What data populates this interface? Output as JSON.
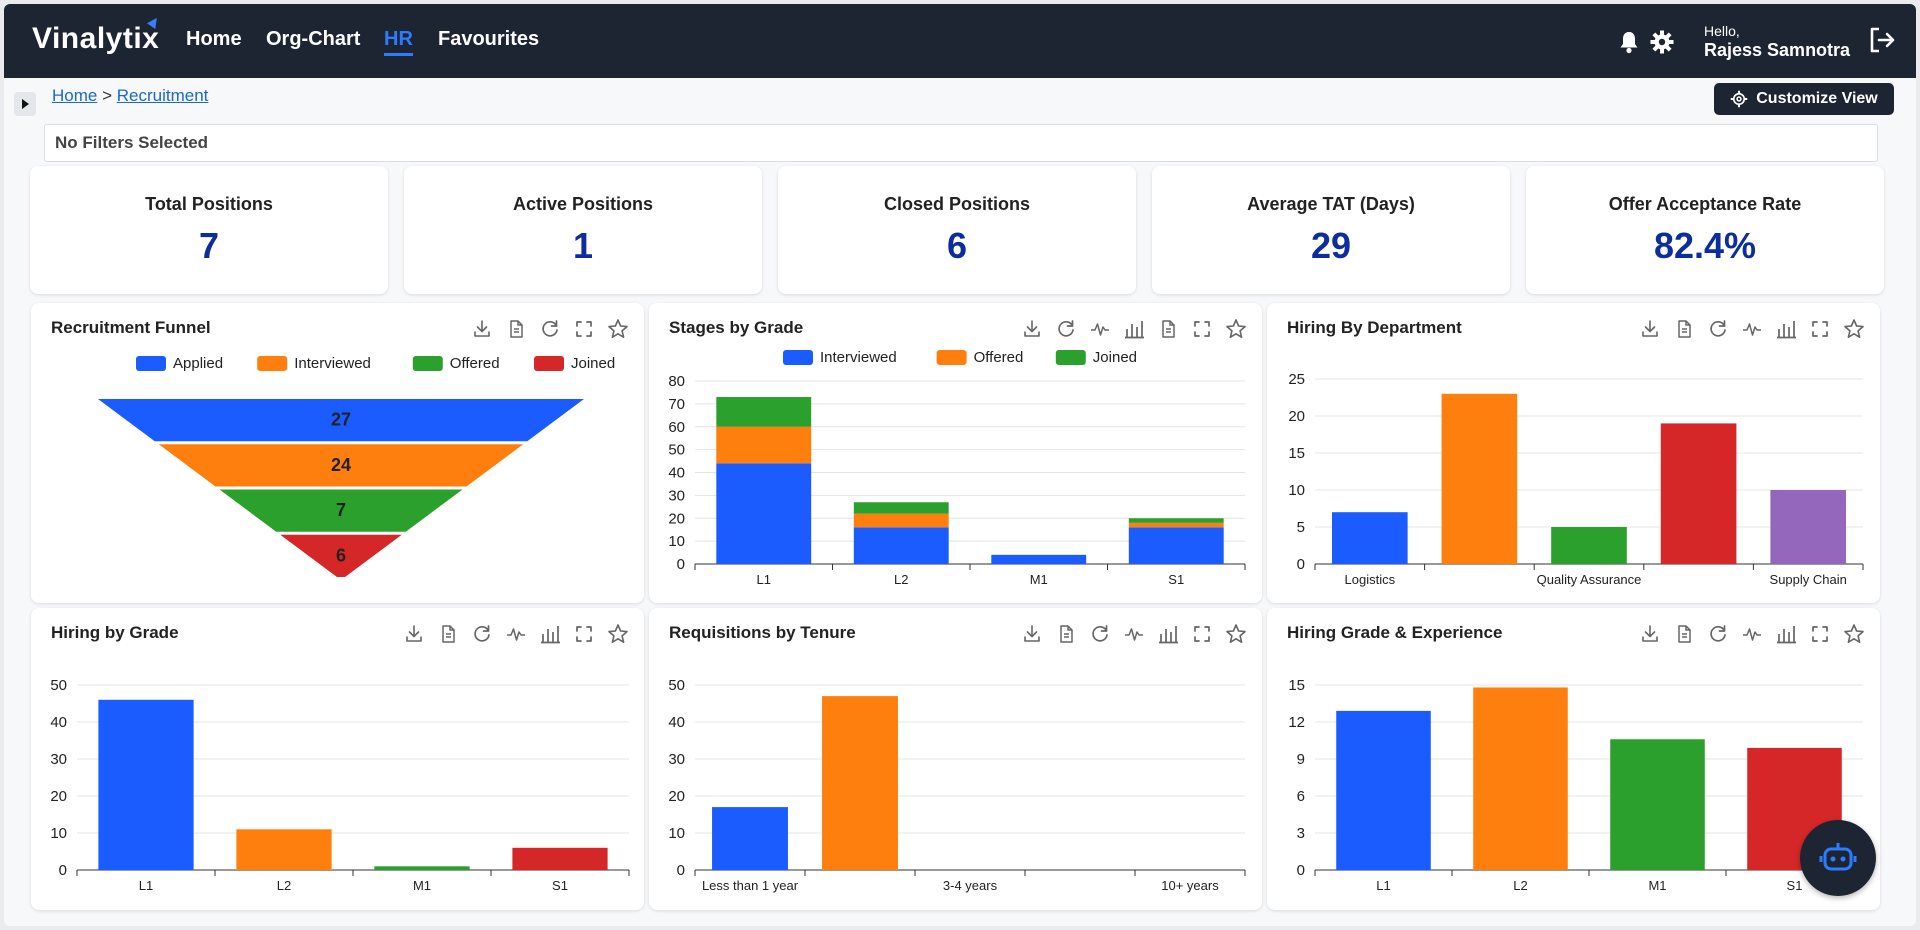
{
  "app": {
    "brand": "Vinalytix"
  },
  "nav": {
    "items": [
      {
        "label": "Home",
        "active": false
      },
      {
        "label": "Org-Chart",
        "active": false
      },
      {
        "label": "HR",
        "active": true
      },
      {
        "label": "Favourites",
        "active": false
      }
    ],
    "greeting": "Hello,",
    "user": "Rajess Samnotra",
    "icons": [
      "bell-icon",
      "gear-icon",
      "logout-icon"
    ]
  },
  "breadcrumb": {
    "home": "Home",
    "separator": ">",
    "current": "Recruitment"
  },
  "customize_label": "Customize View",
  "filters_text": "No Filters Selected",
  "kpis": [
    {
      "title": "Total Positions",
      "value": "7"
    },
    {
      "title": "Active Positions",
      "value": "1"
    },
    {
      "title": "Closed Positions",
      "value": "6"
    },
    {
      "title": "Average TAT (Days)",
      "value": "29"
    },
    {
      "title": "Offer Acceptance Rate",
      "value": "82.4%"
    }
  ],
  "colors": {
    "blue": "#1a5cff",
    "orange": "#ff7f0e",
    "green": "#2ca02c",
    "red": "#d62728",
    "purple": "#9467bd",
    "navy": "#1e2532",
    "kpi": "#0d2d9e"
  },
  "cards": {
    "funnel": {
      "title": "Recruitment Funnel"
    },
    "stages": {
      "title": "Stages by Grade"
    },
    "dept": {
      "title": "Hiring By Department"
    },
    "grade": {
      "title": "Hiring by Grade"
    },
    "tenure": {
      "title": "Requisitions by Tenure"
    },
    "gradeexp": {
      "title": "Hiring Grade & Experience"
    }
  },
  "chart_data": [
    {
      "id": "funnel",
      "type": "funnel",
      "title": "Recruitment Funnel",
      "legend": "top",
      "categories": [
        "Applied",
        "Interviewed",
        "Offered",
        "Joined"
      ],
      "values": [
        27,
        24,
        7,
        6
      ],
      "colors": [
        "#1a5cff",
        "#ff7f0e",
        "#2ca02c",
        "#d62728"
      ]
    },
    {
      "id": "stages",
      "type": "bar",
      "stacked": true,
      "title": "Stages by Grade",
      "legend": "top",
      "categories": [
        "L1",
        "L2",
        "M1",
        "S1"
      ],
      "series": [
        {
          "name": "Interviewed",
          "values": [
            44,
            16,
            4,
            16
          ],
          "color": "#1a5cff"
        },
        {
          "name": "Offered",
          "values": [
            16,
            6,
            0,
            2
          ],
          "color": "#ff7f0e"
        },
        {
          "name": "Joined",
          "values": [
            13,
            5,
            0,
            2
          ],
          "color": "#2ca02c"
        }
      ],
      "ylim": [
        0,
        80
      ],
      "yticks": [
        0,
        10,
        20,
        30,
        40,
        50,
        60,
        70,
        80
      ]
    },
    {
      "id": "dept",
      "type": "bar",
      "title": "Hiring By Department",
      "categories": [
        "Logistics",
        "",
        "Quality Assurance",
        "",
        "Supply Chain"
      ],
      "values": [
        7,
        23,
        5,
        19,
        10
      ],
      "colors": [
        "#1a5cff",
        "#ff7f0e",
        "#2ca02c",
        "#d62728",
        "#9467bd"
      ],
      "ylim": [
        0,
        25
      ],
      "yticks": [
        0,
        5,
        10,
        15,
        20,
        25
      ]
    },
    {
      "id": "grade",
      "type": "bar",
      "title": "Hiring by Grade",
      "categories": [
        "L1",
        "L2",
        "M1",
        "S1"
      ],
      "values": [
        46,
        11,
        1,
        6
      ],
      "colors": [
        "#1a5cff",
        "#ff7f0e",
        "#2ca02c",
        "#d62728"
      ],
      "ylim": [
        0,
        50
      ],
      "yticks": [
        0,
        10,
        20,
        30,
        40,
        50
      ]
    },
    {
      "id": "tenure",
      "type": "bar",
      "title": "Requisitions by Tenure",
      "categories": [
        "Less than 1 year",
        "",
        "3-4 years",
        "",
        "10+ years"
      ],
      "values": [
        17,
        47,
        0,
        0,
        0
      ],
      "colors": [
        "#1a5cff",
        "#ff7f0e",
        "#2ca02c",
        "#d62728",
        "#9467bd"
      ],
      "ylim": [
        0,
        50
      ],
      "yticks": [
        0,
        10,
        20,
        30,
        40,
        50
      ]
    },
    {
      "id": "gradeexp",
      "type": "bar",
      "title": "Hiring Grade & Experience",
      "categories": [
        "L1",
        "L2",
        "M1",
        "S1"
      ],
      "values": [
        12.9,
        14.8,
        10.6,
        9.9
      ],
      "colors": [
        "#1a5cff",
        "#ff7f0e",
        "#2ca02c",
        "#d62728"
      ],
      "ylim": [
        0,
        15
      ],
      "yticks": [
        0,
        3,
        6,
        9,
        12,
        15
      ]
    }
  ]
}
